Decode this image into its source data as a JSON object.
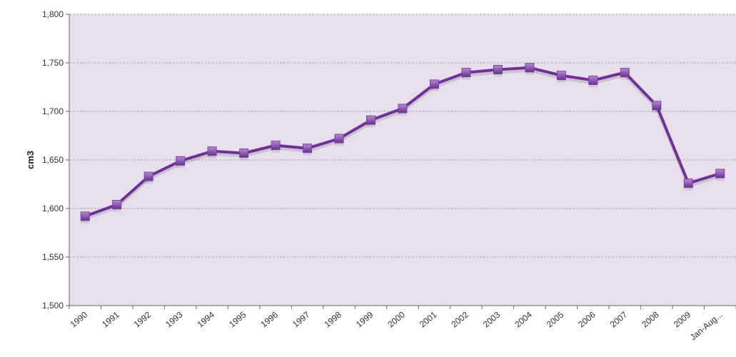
{
  "chart_data": {
    "type": "line",
    "title": "",
    "xlabel": "",
    "ylabel": "cm3",
    "categories": [
      "1990",
      "1991",
      "1992",
      "1993",
      "1994",
      "1995",
      "1996",
      "1997",
      "1998",
      "1999",
      "2000",
      "2001",
      "2002",
      "2003",
      "2004",
      "2005",
      "2006",
      "2007",
      "2008",
      "2009",
      "Jan-Aug..."
    ],
    "series": [
      {
        "values": [
          1592,
          1604,
          1633,
          1649,
          1659,
          1657,
          1665,
          1662,
          1672,
          1691,
          1703,
          1728,
          1740,
          1743,
          1745,
          1737,
          1732,
          1740,
          1706,
          1626,
          1636
        ]
      }
    ],
    "ylim": [
      1500,
      1800
    ],
    "yticks": [
      1500,
      1550,
      1600,
      1650,
      1700,
      1750,
      1800
    ],
    "ytick_labels": [
      "1,500",
      "1,550",
      "1,600",
      "1,650",
      "1,700",
      "1,750",
      "1,800"
    ],
    "grid": true,
    "legend": "none",
    "colors": {
      "line": "#6f3198",
      "marker": "#7b3fa8",
      "plot_bg": "#e7e0ec",
      "grid": "#a9a9a9"
    }
  }
}
